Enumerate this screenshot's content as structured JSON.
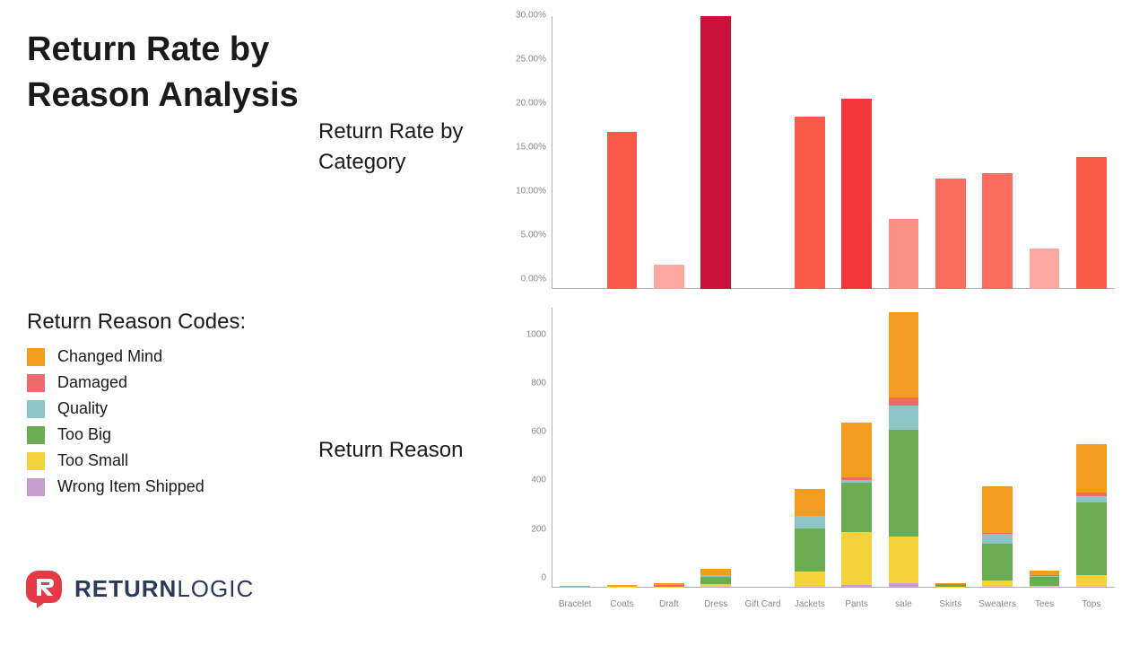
{
  "title": "Return Rate by Reason Analysis",
  "legend_title": "Return Reason Codes:",
  "legend": [
    {
      "label": "Changed Mind",
      "color": "#f39c1f"
    },
    {
      "label": "Damaged",
      "color": "#ef6a6a"
    },
    {
      "label": "Quality",
      "color": "#8fc4c4"
    },
    {
      "label": "Too Big",
      "color": "#6bac52"
    },
    {
      "label": "Too Small",
      "color": "#f4d23a"
    },
    {
      "label": "Wrong Item Shipped",
      "color": "#c79ccf"
    }
  ],
  "logo": {
    "mark_color": "#e63946",
    "text_color": "#2b3a5a",
    "text_bold": "RETURN",
    "text_light": "LOGIC"
  },
  "top_chart": {
    "label": "Return Rate by Category",
    "type": "bar",
    "ylim": [
      0,
      31
    ],
    "yticks": [
      0,
      5,
      10,
      15,
      20,
      25,
      30
    ],
    "ytick_format": "percent2",
    "categories": [
      "Bracelet",
      "Coats",
      "Draft",
      "Dress",
      "Gift Card",
      "Jackets",
      "Pants",
      "sale",
      "Skirts",
      "Sweaters",
      "Tees",
      "Tops"
    ],
    "values": [
      0,
      17.8,
      2.8,
      31.0,
      0,
      19.6,
      21.6,
      8.0,
      12.5,
      13.2,
      4.6,
      15.0
    ],
    "bar_colors": [
      "#fa5a4a",
      "#fa5a4a",
      "#fca7a0",
      "#c9113a",
      "#fa5a4a",
      "#fa5a4a",
      "#f1383a",
      "#fc8f85",
      "#fa6d5e",
      "#fa6d5e",
      "#fca7a0",
      "#fa5a4a"
    ],
    "background": "#ffffff",
    "axis_color": "#b0b0b0",
    "tick_fontsize": 10,
    "tick_color": "#888888",
    "bar_width": 0.64
  },
  "bottom_chart": {
    "label": "Return Reason",
    "type": "stacked-bar",
    "ylim": [
      0,
      1150
    ],
    "yticks": [
      0,
      200,
      400,
      600,
      800,
      1000
    ],
    "ytick_format": "int",
    "categories": [
      "Bracelet",
      "Coats",
      "Draft",
      "Dress",
      "Gift Card",
      "Jackets",
      "Pants",
      "sale",
      "Skirts",
      "Sweaters",
      "Tees",
      "Tops"
    ],
    "stack_order": [
      "Wrong Item Shipped",
      "Too Small",
      "Too Big",
      "Quality",
      "Damaged",
      "Changed Mind"
    ],
    "stack_colors": {
      "Changed Mind": "#f39c1f",
      "Damaged": "#ef6a6a",
      "Quality": "#8fc4c4",
      "Too Big": "#6bac52",
      "Too Small": "#f4d23a",
      "Wrong Item Shipped": "#c79ccf"
    },
    "stacks": [
      {
        "Wrong Item Shipped": 0,
        "Too Small": 0,
        "Too Big": 0,
        "Quality": 3,
        "Damaged": 0,
        "Changed Mind": 5
      },
      {
        "Wrong Item Shipped": 0,
        "Too Small": 2,
        "Too Big": 2,
        "Quality": 2,
        "Damaged": 2,
        "Changed Mind": 2
      },
      {
        "Wrong Item Shipped": 0,
        "Too Small": 4,
        "Too Big": 4,
        "Quality": 0,
        "Damaged": 2,
        "Changed Mind": 7
      },
      {
        "Wrong Item Shipped": 3,
        "Too Small": 10,
        "Too Big": 30,
        "Quality": 7,
        "Damaged": 3,
        "Changed Mind": 23
      },
      {
        "Wrong Item Shipped": 0,
        "Too Small": 0,
        "Too Big": 0,
        "Quality": 0,
        "Damaged": 0,
        "Changed Mind": 0
      },
      {
        "Wrong Item Shipped": 5,
        "Too Small": 60,
        "Too Big": 180,
        "Quality": 50,
        "Damaged": 0,
        "Changed Mind": 110
      },
      {
        "Wrong Item Shipped": 10,
        "Too Small": 220,
        "Too Big": 200,
        "Quality": 12,
        "Damaged": 10,
        "Changed Mind": 228
      },
      {
        "Wrong Item Shipped": 20,
        "Too Small": 190,
        "Too Big": 440,
        "Quality": 100,
        "Damaged": 30,
        "Changed Mind": 350
      },
      {
        "Wrong Item Shipped": 0,
        "Too Small": 4,
        "Too Big": 10,
        "Quality": 0,
        "Damaged": 0,
        "Changed Mind": 6
      },
      {
        "Wrong Item Shipped": 5,
        "Too Small": 25,
        "Too Big": 150,
        "Quality": 40,
        "Damaged": 5,
        "Changed Mind": 190
      },
      {
        "Wrong Item Shipped": 2,
        "Too Small": 6,
        "Too Big": 35,
        "Quality": 5,
        "Damaged": 2,
        "Changed Mind": 20
      },
      {
        "Wrong Item Shipped": 5,
        "Too Small": 45,
        "Too Big": 300,
        "Quality": 25,
        "Damaged": 15,
        "Changed Mind": 200
      }
    ],
    "background": "#ffffff",
    "axis_color": "#b0b0b0",
    "tick_fontsize": 10,
    "tick_color": "#888888",
    "bar_width": 0.64
  }
}
